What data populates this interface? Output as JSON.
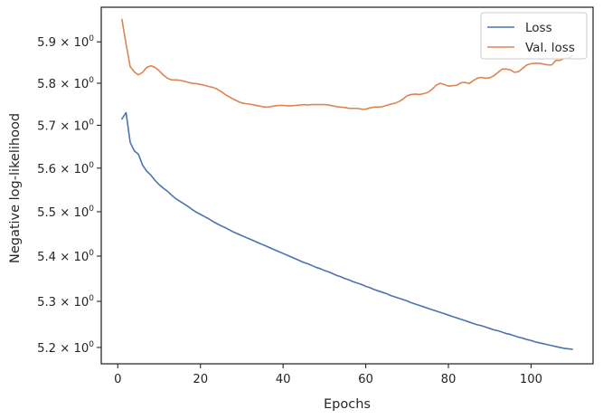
{
  "chart_data": {
    "type": "line",
    "title": "",
    "xlabel": "Epochs",
    "ylabel": "Negative log-likelihood",
    "xlim": [
      -4,
      115
    ],
    "ylim": [
      5.165,
      5.985
    ],
    "yscale": "log",
    "grid": false,
    "legend_position": "top-right",
    "xticks": [
      0,
      20,
      40,
      60,
      80,
      100
    ],
    "xtick_labels": [
      "0",
      "20",
      "40",
      "60",
      "80",
      "100"
    ],
    "yticks": [
      5.2,
      5.3,
      5.4,
      5.5,
      5.6,
      5.7,
      5.8,
      5.9
    ],
    "ytick_labels": [
      {
        "mantissa": "5.2",
        "times": "×",
        "base": "10",
        "exp": "0"
      },
      {
        "mantissa": "5.3",
        "times": "×",
        "base": "10",
        "exp": "0"
      },
      {
        "mantissa": "5.4",
        "times": "×",
        "base": "10",
        "exp": "0"
      },
      {
        "mantissa": "5.5",
        "times": "×",
        "base": "10",
        "exp": "0"
      },
      {
        "mantissa": "5.6",
        "times": "×",
        "base": "10",
        "exp": "0"
      },
      {
        "mantissa": "5.7",
        "times": "×",
        "base": "10",
        "exp": "0"
      },
      {
        "mantissa": "5.8",
        "times": "×",
        "base": "10",
        "exp": "0"
      },
      {
        "mantissa": "5.9",
        "times": "×",
        "base": "10",
        "exp": "0"
      }
    ],
    "series": [
      {
        "name": "Loss",
        "color": "#4c72b0",
        "x": [
          1,
          2,
          3,
          4,
          5,
          6,
          7,
          8,
          9,
          10,
          11,
          12,
          13,
          14,
          15,
          16,
          17,
          18,
          19,
          20,
          21,
          22,
          23,
          24,
          25,
          26,
          27,
          28,
          29,
          30,
          31,
          32,
          33,
          34,
          35,
          36,
          37,
          38,
          39,
          40,
          41,
          42,
          43,
          44,
          45,
          46,
          47,
          48,
          49,
          50,
          51,
          52,
          53,
          54,
          55,
          56,
          57,
          58,
          59,
          60,
          61,
          62,
          63,
          64,
          65,
          66,
          67,
          68,
          69,
          70,
          71,
          72,
          73,
          74,
          75,
          76,
          77,
          78,
          79,
          80,
          81,
          82,
          83,
          84,
          85,
          86,
          87,
          88,
          89,
          90,
          91,
          92,
          93,
          94,
          95,
          96,
          97,
          98,
          99,
          100,
          101,
          102,
          103,
          104,
          105,
          106,
          107,
          108,
          109,
          110
        ],
        "y": [
          5.715,
          5.73,
          5.66,
          5.64,
          5.632,
          5.607,
          5.593,
          5.584,
          5.572,
          5.562,
          5.554,
          5.547,
          5.538,
          5.53,
          5.524,
          5.518,
          5.512,
          5.505,
          5.499,
          5.494,
          5.489,
          5.484,
          5.478,
          5.473,
          5.468,
          5.464,
          5.459,
          5.454,
          5.45,
          5.446,
          5.442,
          5.438,
          5.434,
          5.43,
          5.426,
          5.422,
          5.418,
          5.414,
          5.41,
          5.406,
          5.402,
          5.398,
          5.394,
          5.39,
          5.386,
          5.383,
          5.379,
          5.375,
          5.372,
          5.368,
          5.365,
          5.361,
          5.357,
          5.354,
          5.35,
          5.347,
          5.343,
          5.34,
          5.337,
          5.333,
          5.33,
          5.326,
          5.323,
          5.32,
          5.317,
          5.313,
          5.31,
          5.307,
          5.304,
          5.301,
          5.297,
          5.294,
          5.291,
          5.288,
          5.285,
          5.282,
          5.279,
          5.276,
          5.273,
          5.27,
          5.267,
          5.264,
          5.261,
          5.258,
          5.255,
          5.252,
          5.249,
          5.247,
          5.244,
          5.241,
          5.238,
          5.236,
          5.233,
          5.23,
          5.228,
          5.225,
          5.222,
          5.22,
          5.217,
          5.215,
          5.212,
          5.21,
          5.208,
          5.206,
          5.204,
          5.202,
          5.2,
          5.198,
          5.197,
          5.196
        ]
      },
      {
        "name": "Val. loss",
        "color": "#dd8452",
        "x": [
          1,
          2,
          3,
          4,
          5,
          6,
          7,
          8,
          9,
          10,
          11,
          12,
          13,
          14,
          15,
          16,
          17,
          18,
          19,
          20,
          21,
          22,
          23,
          24,
          25,
          26,
          27,
          28,
          29,
          30,
          31,
          32,
          33,
          34,
          35,
          36,
          37,
          38,
          39,
          40,
          41,
          42,
          43,
          44,
          45,
          46,
          47,
          48,
          49,
          50,
          51,
          52,
          53,
          54,
          55,
          56,
          57,
          58,
          59,
          60,
          61,
          62,
          63,
          64,
          65,
          66,
          67,
          68,
          69,
          70,
          71,
          72,
          73,
          74,
          75,
          76,
          77,
          78,
          79,
          80,
          81,
          82,
          83,
          84,
          85,
          86,
          87,
          88,
          89,
          90,
          91,
          92,
          93,
          94,
          95,
          96,
          97,
          98,
          99,
          100,
          101,
          102,
          103,
          104,
          105,
          106,
          107,
          108,
          109,
          110
        ],
        "y": [
          5.955,
          5.895,
          5.84,
          5.827,
          5.82,
          5.826,
          5.838,
          5.842,
          5.838,
          5.83,
          5.82,
          5.812,
          5.808,
          5.808,
          5.807,
          5.805,
          5.802,
          5.8,
          5.799,
          5.797,
          5.795,
          5.792,
          5.79,
          5.786,
          5.78,
          5.773,
          5.767,
          5.762,
          5.757,
          5.753,
          5.751,
          5.75,
          5.748,
          5.746,
          5.744,
          5.743,
          5.744,
          5.746,
          5.747,
          5.747,
          5.746,
          5.746,
          5.747,
          5.748,
          5.749,
          5.748,
          5.749,
          5.749,
          5.749,
          5.749,
          5.748,
          5.746,
          5.744,
          5.743,
          5.742,
          5.74,
          5.74,
          5.74,
          5.738,
          5.738,
          5.741,
          5.743,
          5.743,
          5.744,
          5.747,
          5.75,
          5.752,
          5.756,
          5.762,
          5.77,
          5.773,
          5.774,
          5.773,
          5.775,
          5.778,
          5.785,
          5.795,
          5.8,
          5.797,
          5.793,
          5.794,
          5.795,
          5.801,
          5.802,
          5.799,
          5.806,
          5.812,
          5.814,
          5.812,
          5.813,
          5.818,
          5.826,
          5.834,
          5.834,
          5.832,
          5.826,
          5.828,
          5.836,
          5.844,
          5.847,
          5.848,
          5.848,
          5.846,
          5.844,
          5.844,
          5.855,
          5.855,
          5.86,
          5.86,
          5.866
        ]
      }
    ]
  }
}
